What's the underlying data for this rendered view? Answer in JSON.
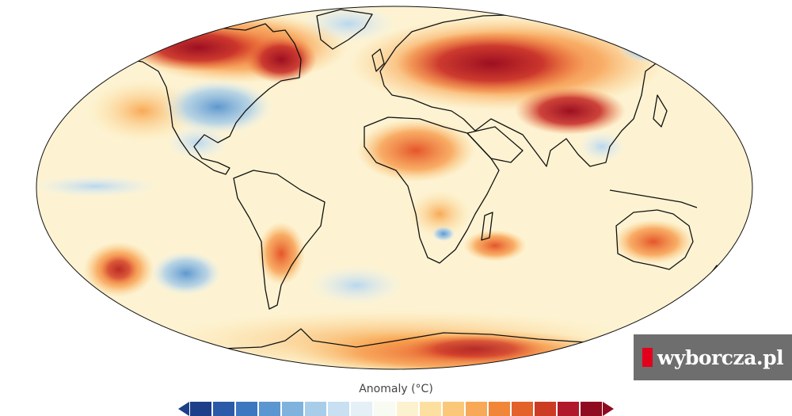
{
  "map": {
    "colors": {
      "ocean_neutral": "#fdf4d6",
      "land_neutral": "#fde9bd",
      "warm_strong": "#b2182b",
      "warm_mid": "#ef6a1f",
      "warm_light": "#fbb65e",
      "cool_light": "#c8e0f1",
      "cool_mid": "#7fb2dc",
      "cool_strong": "#3f79b8",
      "coastline": "#111111"
    }
  },
  "colorbar": {
    "title": "Anomaly (°C)",
    "colors": [
      "#1d3f8a",
      "#2a5aa8",
      "#3b78c0",
      "#5a96d0",
      "#7fb2dc",
      "#a8cde8",
      "#c8e0f1",
      "#e4f0f6",
      "#f7fbf2",
      "#fdf2cf",
      "#fde0a0",
      "#fbc879",
      "#f8a957",
      "#f18638",
      "#e2622a",
      "#cc3b24",
      "#b2182b",
      "#8f0c20"
    ]
  },
  "watermark": {
    "text": "wyborcza.pl"
  }
}
